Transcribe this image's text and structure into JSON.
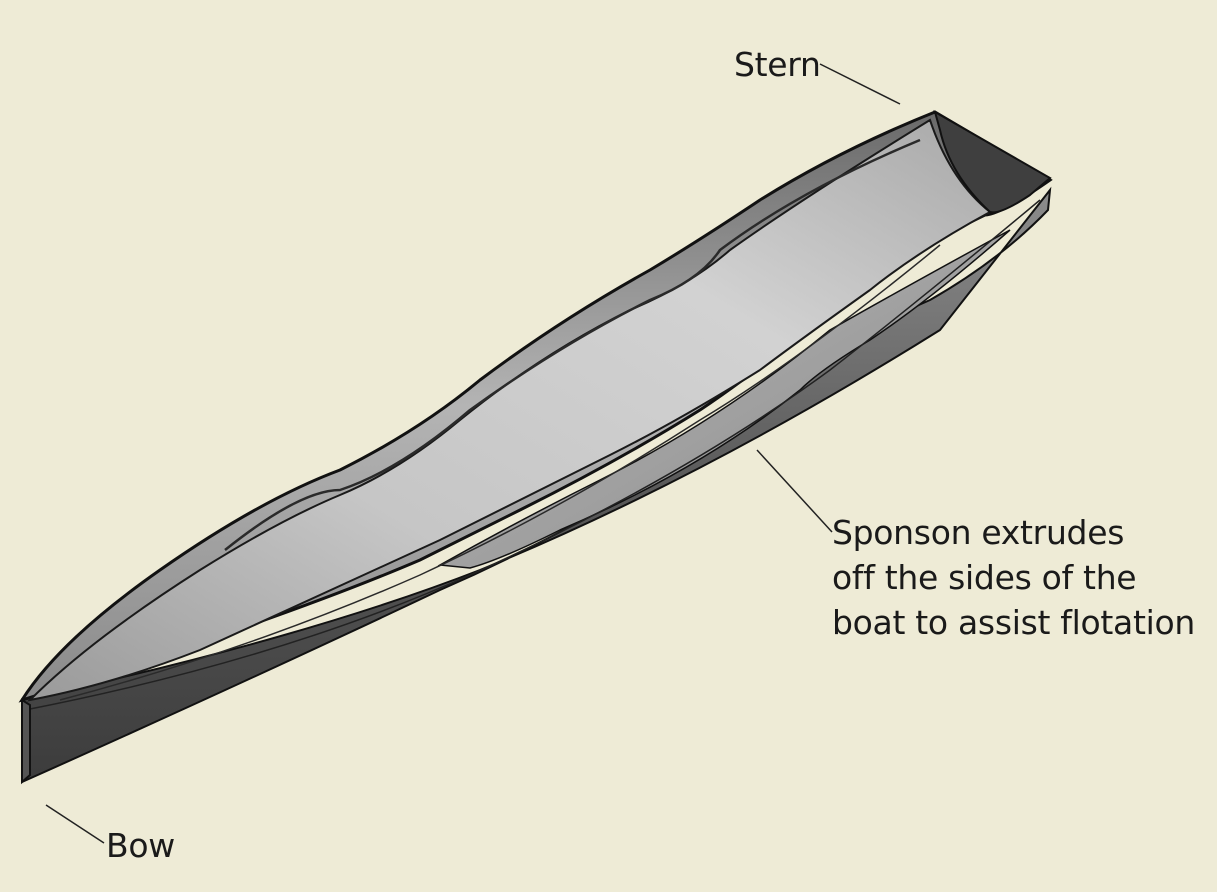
{
  "labels": {
    "stern": "Stern",
    "bow": "Bow",
    "sponson": [
      "Sponson extrudes",
      "off the sides of the",
      "boat to assist flotation"
    ]
  },
  "colors": {
    "background": "#eeebd6",
    "hull_dark": "#3a3a3a",
    "hull_mid": "#8a8a8a",
    "hull_light": "#c4c4c4",
    "outline": "#111111"
  }
}
